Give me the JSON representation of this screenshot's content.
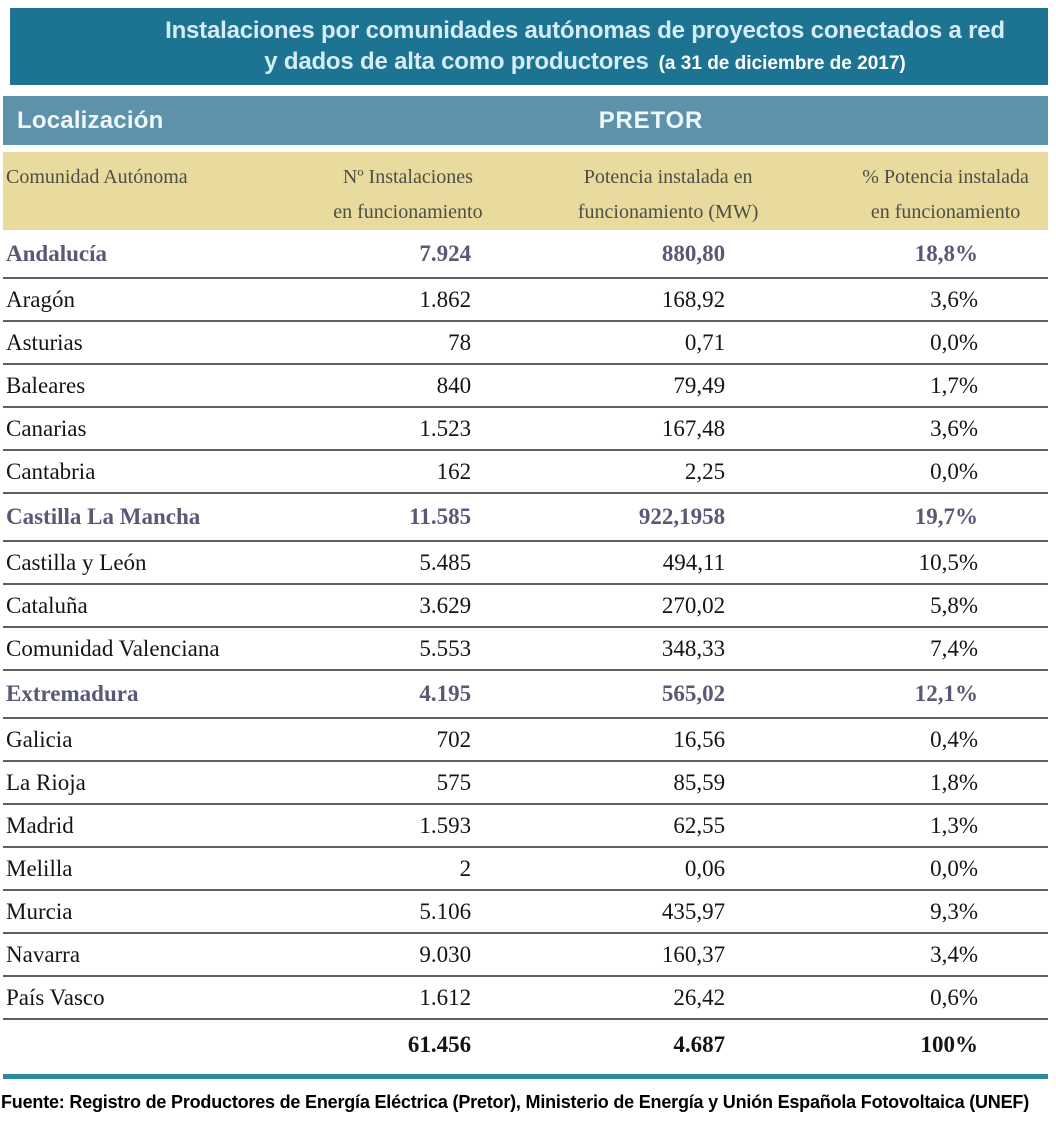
{
  "title": {
    "line1": "Instalaciones por comunidades autónomas de proyectos conectados a red",
    "line2": "y dados de alta como productores",
    "date_note": "(a 31 de diciembre de 2017)"
  },
  "subheader": {
    "left": "Localización",
    "center": "PRETOR"
  },
  "table": {
    "columns": [
      "Comunidad Autónoma",
      "Nº Instalaciones\nen funcionamiento",
      "Potencia instalada en\nfuncionamiento (MW)",
      "% Potencia instalada\nen funcionamiento"
    ],
    "rows": [
      {
        "name": "Andalucía",
        "installs": "7.924",
        "power": "880,80",
        "pct": "18,8%",
        "highlight": true
      },
      {
        "name": "Aragón",
        "installs": "1.862",
        "power": "168,92",
        "pct": "3,6%",
        "highlight": false
      },
      {
        "name": "Asturias",
        "installs": "78",
        "power": "0,71",
        "pct": "0,0%",
        "highlight": false
      },
      {
        "name": "Baleares",
        "installs": "840",
        "power": "79,49",
        "pct": "1,7%",
        "highlight": false
      },
      {
        "name": "Canarias",
        "installs": "1.523",
        "power": "167,48",
        "pct": "3,6%",
        "highlight": false
      },
      {
        "name": "Cantabria",
        "installs": "162",
        "power": "2,25",
        "pct": "0,0%",
        "highlight": false
      },
      {
        "name": "Castilla La Mancha",
        "installs": "11.585",
        "power": "922,1958",
        "pct": "19,7%",
        "highlight": true
      },
      {
        "name": "Castilla y León",
        "installs": "5.485",
        "power": "494,11",
        "pct": "10,5%",
        "highlight": false
      },
      {
        "name": "Cataluña",
        "installs": "3.629",
        "power": "270,02",
        "pct": "5,8%",
        "highlight": false
      },
      {
        "name": "Comunidad Valenciana",
        "installs": "5.553",
        "power": "348,33",
        "pct": "7,4%",
        "highlight": false
      },
      {
        "name": "Extremadura",
        "installs": "4.195",
        "power": "565,02",
        "pct": "12,1%",
        "highlight": true
      },
      {
        "name": "Galicia",
        "installs": "702",
        "power": "16,56",
        "pct": "0,4%",
        "highlight": false
      },
      {
        "name": "La Rioja",
        "installs": "575",
        "power": "85,59",
        "pct": "1,8%",
        "highlight": false
      },
      {
        "name": "Madrid",
        "installs": "1.593",
        "power": "62,55",
        "pct": "1,3%",
        "highlight": false
      },
      {
        "name": "Melilla",
        "installs": "2",
        "power": "0,06",
        "pct": "0,0%",
        "highlight": false
      },
      {
        "name": "Murcia",
        "installs": "5.106",
        "power": "435,97",
        "pct": "9,3%",
        "highlight": false
      },
      {
        "name": "Navarra",
        "installs": "9.030",
        "power": "160,37",
        "pct": "3,4%",
        "highlight": false
      },
      {
        "name": "País Vasco",
        "installs": "1.612",
        "power": "26,42",
        "pct": "0,6%",
        "highlight": false
      }
    ],
    "total": {
      "name": "",
      "installs": "61.456",
      "power": "4.687",
      "pct": "100%"
    }
  },
  "footer": {
    "source": "Fuente: Registro de Productores de Energía Eléctrica (Pretor), Ministerio de Energía y Unión Española Fotovoltaica (UNEF)"
  },
  "colors": {
    "banner": "#1d7492",
    "subbar": "#5e92ab",
    "khaki": "#e9db9d",
    "highlight": "#585877",
    "rule": "#2b8a9f",
    "sep": "#5f5f5f"
  }
}
